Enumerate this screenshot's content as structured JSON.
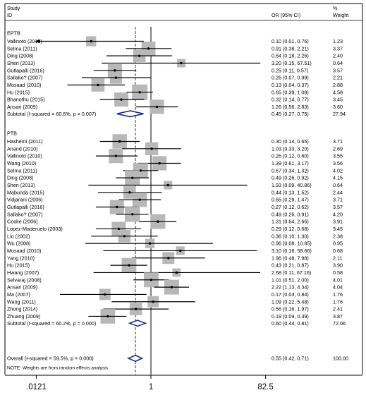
{
  "chart_data": {
    "type": "forest",
    "header": {
      "study_label_1": "Study",
      "study_label_2": "ID",
      "or_label": "OR (95% CI)",
      "weight_label_1": "%",
      "weight_label_2": "Weight"
    },
    "x_scale": "log",
    "xlim": [
      0.0121,
      82.5
    ],
    "x_ticks": [
      0.0121,
      1,
      82.5
    ],
    "x_tick_labels": [
      ".0121",
      "1",
      "82.5"
    ],
    "null_value": 1,
    "footnote": "NOTE: Weights are from random effects analysis",
    "groups": [
      {
        "name": "EPTB",
        "studies": [
          {
            "label": "Vallinoto (2010)",
            "or": 0.1,
            "lo": 0.01,
            "hi": 0.76,
            "ci_text": "0.10 (0.01, 0.76)",
            "weight": "1.23",
            "w": 1.23,
            "arrow_left": true
          },
          {
            "label": "Selma (2011)",
            "or": 0.91,
            "lo": 0.38,
            "hi": 2.21,
            "ci_text": "0.91 (0.38, 2.21)",
            "weight": "3.37",
            "w": 3.37
          },
          {
            "label": "Ding (2008)",
            "or": 0.64,
            "lo": 0.18,
            "hi": 2.26,
            "ci_text": "0.64 (0.18, 2.26)",
            "weight": "2.40",
            "w": 2.4
          },
          {
            "label": "Shen (2013)",
            "or": 3.2,
            "lo": 0.15,
            "hi": 67.51,
            "ci_text": "3.20 (0.15, 67.51)",
            "weight": "0.64",
            "w": 0.64
          },
          {
            "label": "Gutlapalli (2016)",
            "or": 0.25,
            "lo": 0.11,
            "hi": 0.57,
            "ci_text": "0.25 (0.11, 0.57)",
            "weight": "3.57",
            "w": 3.57
          },
          {
            "label": "Sallako? (2007)",
            "or": 0.26,
            "lo": 0.07,
            "hi": 0.99,
            "ci_text": "0.26 (0.07, 0.99)",
            "weight": "2.21",
            "w": 2.21
          },
          {
            "label": "Mosaad (2010)",
            "or": 0.13,
            "lo": 0.04,
            "hi": 0.37,
            "ci_text": "0.13 (0.04, 0.37)",
            "weight": "2.88",
            "w": 2.88
          },
          {
            "label": "Hu (2015)",
            "or": 0.65,
            "lo": 0.39,
            "hi": 1.08,
            "ci_text": "0.65 (0.39, 1.08)",
            "weight": "4.58",
            "w": 4.58
          },
          {
            "label": "Bhanothu (2015)",
            "or": 0.32,
            "lo": 0.14,
            "hi": 0.77,
            "ci_text": "0.32 (0.14, 0.77)",
            "weight": "3.45",
            "w": 3.45
          },
          {
            "label": "Ansari (2009)",
            "or": 1.26,
            "lo": 0.56,
            "hi": 2.83,
            "ci_text": "1.26 (0.56, 2.83)",
            "weight": "3.60",
            "w": 3.6
          }
        ],
        "subtotal": {
          "label": "Subtotal  (I-squared = 60.6%, p = 0.007)",
          "or": 0.45,
          "lo": 0.27,
          "hi": 0.75,
          "ci_text": "0.45 (0.27, 0.75)",
          "weight": "27.94"
        }
      },
      {
        "name": "PTB",
        "studies": [
          {
            "label": "Hashemi (2011)",
            "or": 0.3,
            "lo": 0.14,
            "hi": 0.65,
            "ci_text": "0.30 (0.14, 0.65)",
            "weight": "3.71",
            "w": 3.71
          },
          {
            "label": "Anand (2010)",
            "or": 1.03,
            "lo": 0.33,
            "hi": 3.2,
            "ci_text": "1.03 (0.33, 3.20)",
            "weight": "2.69",
            "w": 2.69
          },
          {
            "label": "Vallinoto (2010)",
            "or": 0.26,
            "lo": 0.12,
            "hi": 0.6,
            "ci_text": "0.26 (0.12, 0.60)",
            "weight": "3.55",
            "w": 3.55
          },
          {
            "label": "Wang (2010)",
            "or": 1.39,
            "lo": 0.61,
            "hi": 3.17,
            "ci_text": "1.39 (0.61, 3.17)",
            "weight": "3.56",
            "w": 3.56
          },
          {
            "label": "Selma (2011)",
            "or": 0.67,
            "lo": 0.34,
            "hi": 1.32,
            "ci_text": "0.67 (0.34, 1.32)",
            "weight": "4.02",
            "w": 4.02
          },
          {
            "label": "Ding (2008)",
            "or": 0.49,
            "lo": 0.26,
            "hi": 0.92,
            "ci_text": "0.49 (0.26, 0.92)",
            "weight": "4.15",
            "w": 4.15
          },
          {
            "label": "Shen (2013)",
            "or": 1.93,
            "lo": 0.09,
            "hi": 40.86,
            "ci_text": "1.93 (0.09, 40.86)",
            "weight": "0.64",
            "w": 0.64
          },
          {
            "label": "Mabunda (2015)",
            "or": 0.44,
            "lo": 0.13,
            "hi": 1.52,
            "ci_text": "0.44 (0.13, 1.52)",
            "weight": "2.44",
            "w": 2.44
          },
          {
            "label": "Vidjarani (2006)",
            "or": 0.65,
            "lo": 0.29,
            "hi": 1.47,
            "ci_text": "0.65 (0.29, 1.47)",
            "weight": "3.71",
            "w": 3.71
          },
          {
            "label": "Gutlapalli (2016)",
            "or": 0.27,
            "lo": 0.12,
            "hi": 0.62,
            "ci_text": "0.27 (0.12, 0.62)",
            "weight": "3.57",
            "w": 3.57
          },
          {
            "label": "Sallako? (2007)",
            "or": 0.49,
            "lo": 0.26,
            "hi": 0.91,
            "ci_text": "0.49 (0.26, 0.91)",
            "weight": "4.20",
            "w": 4.2
          },
          {
            "label": "Cooke (2006)",
            "or": 1.31,
            "lo": 0.64,
            "hi": 2.66,
            "ci_text": "1.31 (0.64, 2.66)",
            "weight": "3.91",
            "w": 3.91
          },
          {
            "label": "Lopez-Maderuelo (2003)",
            "or": 0.29,
            "lo": 0.12,
            "hi": 0.68,
            "ci_text": "0.29 (0.12, 0.68)",
            "weight": "3.45",
            "w": 3.45
          },
          {
            "label": "Lio (2002)",
            "or": 0.36,
            "lo": 0.1,
            "hi": 1.3,
            "ci_text": "0.36 (0.10, 1.30)",
            "weight": "2.38",
            "w": 2.38
          },
          {
            "label": "Wu (2008)",
            "or": 0.96,
            "lo": 0.08,
            "hi": 10.85,
            "ci_text": "0.96 (0.08, 10.85)",
            "weight": "0.95",
            "w": 0.95
          },
          {
            "label": "Mosaad (2010)",
            "or": 3.1,
            "lo": 0.16,
            "hi": 58.66,
            "ci_text": "3.10 (0.16, 58.66)",
            "weight": "0.68",
            "w": 0.68
          },
          {
            "label": "Yang (2010)",
            "or": 1.96,
            "lo": 0.48,
            "hi": 7.98,
            "ci_text": "1.96 (0.48, 7.98)",
            "weight": "2.11",
            "w": 2.11
          },
          {
            "label": "Hu (2015)",
            "or": 0.43,
            "lo": 0.21,
            "hi": 0.87,
            "ci_text": "0.43 (0.21, 0.87)",
            "weight": "3.90",
            "w": 3.9
          },
          {
            "label": "Hwang (2007)",
            "or": 2.68,
            "lo": 0.11,
            "hi": 67.16,
            "ci_text": "2.68 (0.11, 67.16)",
            "weight": "0.58",
            "w": 0.58
          },
          {
            "label": "Selvaraj (2008)",
            "or": 1.01,
            "lo": 0.51,
            "hi": 2.0,
            "ci_text": "1.01 (0.51, 2.00)",
            "weight": "4.01",
            "w": 4.01
          },
          {
            "label": "Ansari (2009)",
            "or": 2.22,
            "lo": 1.13,
            "hi": 4.34,
            "ci_text": "2.22 (1.13, 4.34)",
            "weight": "4.04",
            "w": 4.04
          },
          {
            "label": "Ma (2007)",
            "or": 0.17,
            "lo": 0.03,
            "hi": 0.84,
            "ci_text": "0.17 (0.03, 0.84)",
            "weight": "1.76",
            "w": 1.76
          },
          {
            "label": "Wang (2011)",
            "or": 1.09,
            "lo": 0.22,
            "hi": 5.48,
            "ci_text": "1.09 (0.22, 5.48)",
            "weight": "1.76",
            "w": 1.76
          },
          {
            "label": "Zhong (2014)",
            "or": 0.56,
            "lo": 0.16,
            "hi": 1.97,
            "ci_text": "0.56 (0.16, 1.97)",
            "weight": "2.41",
            "w": 2.41
          },
          {
            "label": "Zhuang (2009)",
            "or": 0.19,
            "lo": 0.09,
            "hi": 0.39,
            "ci_text": "0.19 (0.09, 0.39)",
            "weight": "3.87",
            "w": 3.87
          }
        ],
        "subtotal": {
          "label": "Subtotal  (I-squared = 60.2%, p = 0.000)",
          "or": 0.6,
          "lo": 0.44,
          "hi": 0.81,
          "ci_text": "0.60 (0.44, 0.81)",
          "weight": "72.06"
        }
      }
    ],
    "overall": {
      "label": "Overall  (I-squared = 59.5%, p = 0.000)",
      "or": 0.55,
      "lo": 0.42,
      "hi": 0.71,
      "ci_text": "0.55 (0.42, 0.71)",
      "weight": "100.00"
    },
    "colors": {
      "box": "#b8b8b8",
      "line": "#000000",
      "diamond": "#1f2f8f",
      "null_line": "#000000",
      "pooled_line": "#8b1a1a",
      "frame": "#000000"
    }
  }
}
